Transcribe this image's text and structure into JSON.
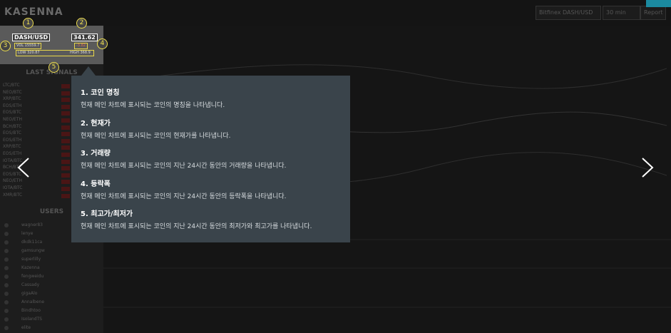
{
  "header": {
    "brand": "KASENNA",
    "exchange": "Bitfinex DASH/USD",
    "interval": "30 min",
    "button": "Report"
  },
  "coin_panel": {
    "pair": "DASH/USD",
    "price": "341.62",
    "volume": "VOL 15559.7",
    "change": "-3.82",
    "low": "LOW 320.87",
    "high": "HIGH 368.9",
    "markers": [
      "1",
      "2",
      "3",
      "4",
      "5"
    ]
  },
  "sidebar": {
    "signals_title": "LAST SIGNALS",
    "signals": [
      "LTC/BTC",
      "NEO/BTC",
      "XRP/BTC",
      "EOS/ETH",
      "EOS/BTC",
      "NEO/ETH",
      "BCH/BTC",
      "EOS/BTC",
      "EOS/ETH",
      "XRP/BTC",
      "EOS/ETH",
      "IOTA/BTC",
      "BCH/BTC",
      "EOS/BTC",
      "NEO/ETH",
      "IOTA/BTC",
      "XMR/BTC"
    ],
    "users_title": "USERS",
    "users": [
      "wagner83",
      "lenye",
      "dkdk11ca",
      "gamsungw",
      "superlilly",
      "Kazenna",
      "fengweidu",
      "Cassady",
      "gigaAlo",
      "Annalbene",
      "Bindhtoo",
      "IsolandTS",
      "elite"
    ]
  },
  "tooltip": {
    "items": [
      {
        "title": "1. 코인 명칭",
        "text": "현재 메인 차트에 표시되는 코인의 명칭을 나타냅니다."
      },
      {
        "title": "2. 현재가",
        "text": "현재 메인 차트에 표시되는 코인의 현재가를 나타냅니다."
      },
      {
        "title": "3. 거래량",
        "text": "현재 메인 차트에 표시되는 코인의 지난 24시간 동안의 거래량을 나타냅니다."
      },
      {
        "title": "4. 등락폭",
        "text": "현재 메인 차트에 표시되는 코인의 지난 24시간 동안의 등락폭을 나타냅니다."
      },
      {
        "title": "5. 최고가/최저가",
        "text": "현재 메인 차트에 표시되는 코인의 지난 24시간 동안의 최저가와 최고가를 나타냅니다."
      }
    ]
  }
}
